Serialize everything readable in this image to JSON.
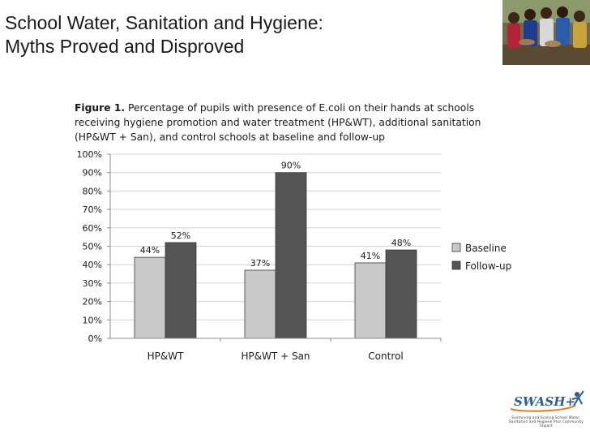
{
  "slide": {
    "title_line1": "School Water, Sanitation and Hygiene:",
    "title_line2": "Myths Proved and Disproved"
  },
  "figure": {
    "caption_label": "Figure 1.",
    "caption_line1_rest": " Percentage of pupils with presence of E.coli on their hands at schools",
    "caption_line2": "receiving hygiene promotion and water treatment (HP&WT), additional sanitation",
    "caption_line3": "(HP&WT + San), and control schools at baseline and follow-up"
  },
  "chart_data": {
    "type": "bar",
    "title": "",
    "xlabel": "",
    "ylabel": "",
    "categories": [
      "HP&WT",
      "HP&WT + San",
      "Control"
    ],
    "series": [
      {
        "name": "Baseline",
        "values": [
          44,
          37,
          41
        ],
        "labels": [
          "44%",
          "37%",
          "41%"
        ],
        "color": "#c9c9c9"
      },
      {
        "name": "Follow-up",
        "values": [
          52,
          90,
          48
        ],
        "labels": [
          "52%",
          "90%",
          "48%"
        ],
        "color": "#545454"
      }
    ],
    "ylim": [
      0,
      100
    ],
    "yticks": [
      "0%",
      "10%",
      "20%",
      "30%",
      "40%",
      "50%",
      "60%",
      "70%",
      "80%",
      "90%",
      "100%"
    ],
    "grid": true,
    "legend_position": "right"
  },
  "logo": {
    "text": "SWASH+",
    "tagline": "Sustaining and Scaling School Water, Sanitation and Hygiene Plus Community Impact",
    "colors": {
      "main": "#2f5e8e",
      "accent": "#e07a1f"
    }
  },
  "colors": {
    "baseline": "#c9c9c9",
    "followup": "#545454",
    "grid": "#d4d4d4",
    "axis": "#8c8c8c"
  }
}
